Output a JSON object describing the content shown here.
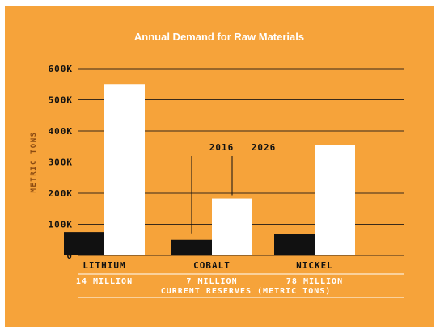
{
  "chart_data": {
    "type": "bar",
    "title": "Annual Demand for Raw Materials",
    "ylabel": "METRIC TONS",
    "categories": [
      "LITHIUM",
      "COBALT",
      "NICKEL"
    ],
    "series": [
      {
        "name": "2016",
        "values": [
          75000,
          50000,
          70000
        ],
        "color": "#111111"
      },
      {
        "name": "2026",
        "values": [
          550000,
          183000,
          355000
        ],
        "color": "#ffffff"
      }
    ],
    "ylim": [
      0,
      600000
    ],
    "yticks": [
      0,
      100000,
      200000,
      300000,
      400000,
      500000,
      600000
    ],
    "ytick_labels": [
      "0",
      "100K",
      "200K",
      "300K",
      "400K",
      "500K",
      "600K"
    ],
    "grid": true,
    "reserves": [
      "14 MILLION",
      "7 MILLION",
      "78 MILLION"
    ],
    "reserves_label": "CURRENT RESERVES (METRIC TONS)",
    "background": "#F6A33A"
  }
}
